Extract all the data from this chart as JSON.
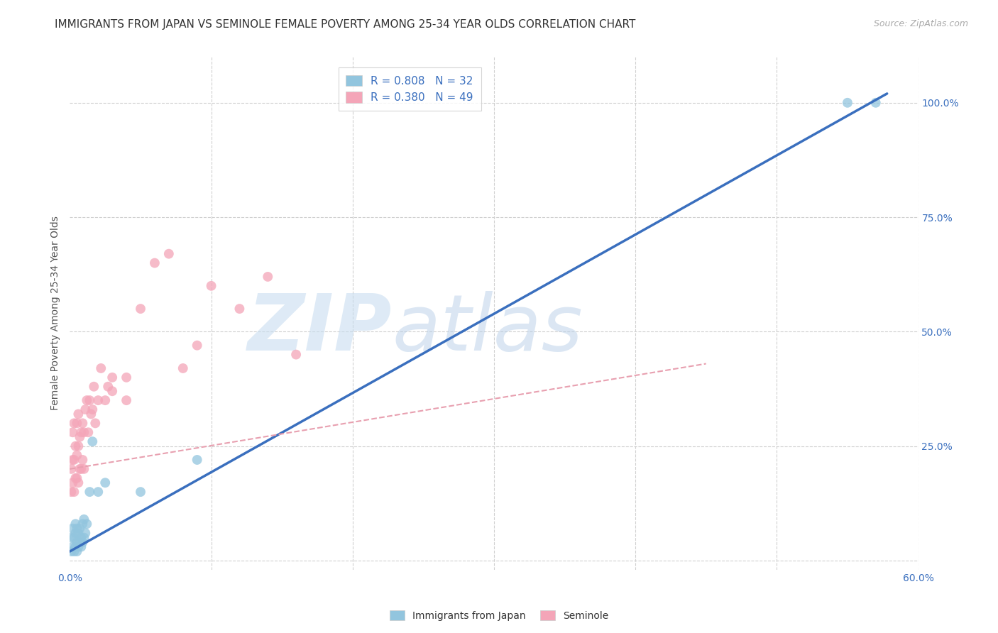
{
  "title": "IMMIGRANTS FROM JAPAN VS SEMINOLE FEMALE POVERTY AMONG 25-34 YEAR OLDS CORRELATION CHART",
  "source": "Source: ZipAtlas.com",
  "ylabel": "Female Poverty Among 25-34 Year Olds",
  "xlim": [
    0.0,
    0.6
  ],
  "ylim": [
    -0.02,
    1.1
  ],
  "xticks": [
    0.0,
    0.1,
    0.2,
    0.3,
    0.4,
    0.5,
    0.6
  ],
  "xticklabels": [
    "0.0%",
    "",
    "",
    "",
    "",
    "",
    "60.0%"
  ],
  "yticks_right": [
    0.0,
    0.25,
    0.5,
    0.75,
    1.0
  ],
  "yticklabels_right": [
    "",
    "25.0%",
    "50.0%",
    "75.0%",
    "100.0%"
  ],
  "blue_R": 0.808,
  "blue_N": 32,
  "pink_R": 0.38,
  "pink_N": 49,
  "blue_color": "#92c5de",
  "pink_color": "#f4a5b8",
  "blue_line_color": "#3a6fbe",
  "pink_line_color": "#e8a0b0",
  "watermark": "ZIPatlas",
  "watermark_color": "#c8ddf0",
  "legend_label_blue": "Immigrants from Japan",
  "legend_label_pink": "Seminole",
  "blue_scatter_x": [
    0.001,
    0.001,
    0.002,
    0.002,
    0.003,
    0.003,
    0.004,
    0.004,
    0.004,
    0.005,
    0.005,
    0.005,
    0.006,
    0.006,
    0.007,
    0.007,
    0.008,
    0.008,
    0.009,
    0.009,
    0.01,
    0.01,
    0.011,
    0.012,
    0.014,
    0.016,
    0.02,
    0.025,
    0.05,
    0.09,
    0.55,
    0.57
  ],
  "blue_scatter_y": [
    0.02,
    0.05,
    0.03,
    0.07,
    0.02,
    0.05,
    0.03,
    0.06,
    0.08,
    0.02,
    0.04,
    0.07,
    0.03,
    0.06,
    0.04,
    0.07,
    0.03,
    0.05,
    0.04,
    0.08,
    0.05,
    0.09,
    0.06,
    0.08,
    0.15,
    0.26,
    0.15,
    0.17,
    0.15,
    0.22,
    1.0,
    1.0
  ],
  "pink_scatter_x": [
    0.001,
    0.001,
    0.002,
    0.002,
    0.002,
    0.003,
    0.003,
    0.003,
    0.004,
    0.004,
    0.005,
    0.005,
    0.005,
    0.006,
    0.006,
    0.006,
    0.007,
    0.007,
    0.008,
    0.008,
    0.009,
    0.009,
    0.01,
    0.01,
    0.011,
    0.012,
    0.013,
    0.014,
    0.015,
    0.016,
    0.017,
    0.018,
    0.02,
    0.022,
    0.025,
    0.027,
    0.03,
    0.03,
    0.04,
    0.04,
    0.05,
    0.06,
    0.07,
    0.08,
    0.09,
    0.1,
    0.12,
    0.14,
    0.16
  ],
  "pink_scatter_y": [
    0.15,
    0.2,
    0.17,
    0.22,
    0.28,
    0.15,
    0.22,
    0.3,
    0.18,
    0.25,
    0.18,
    0.23,
    0.3,
    0.17,
    0.25,
    0.32,
    0.2,
    0.27,
    0.2,
    0.28,
    0.22,
    0.3,
    0.2,
    0.28,
    0.33,
    0.35,
    0.28,
    0.35,
    0.32,
    0.33,
    0.38,
    0.3,
    0.35,
    0.42,
    0.35,
    0.38,
    0.37,
    0.4,
    0.35,
    0.4,
    0.55,
    0.65,
    0.67,
    0.42,
    0.47,
    0.6,
    0.55,
    0.62,
    0.45
  ],
  "blue_line_x": [
    0.0,
    0.578
  ],
  "blue_line_y": [
    0.02,
    1.02
  ],
  "pink_line_x": [
    0.0,
    0.45
  ],
  "pink_line_y": [
    0.2,
    0.43
  ],
  "grid_color": "#d0d0d0",
  "background_color": "#ffffff",
  "title_fontsize": 11,
  "axis_label_fontsize": 10,
  "tick_fontsize": 10,
  "legend_fontsize": 11
}
